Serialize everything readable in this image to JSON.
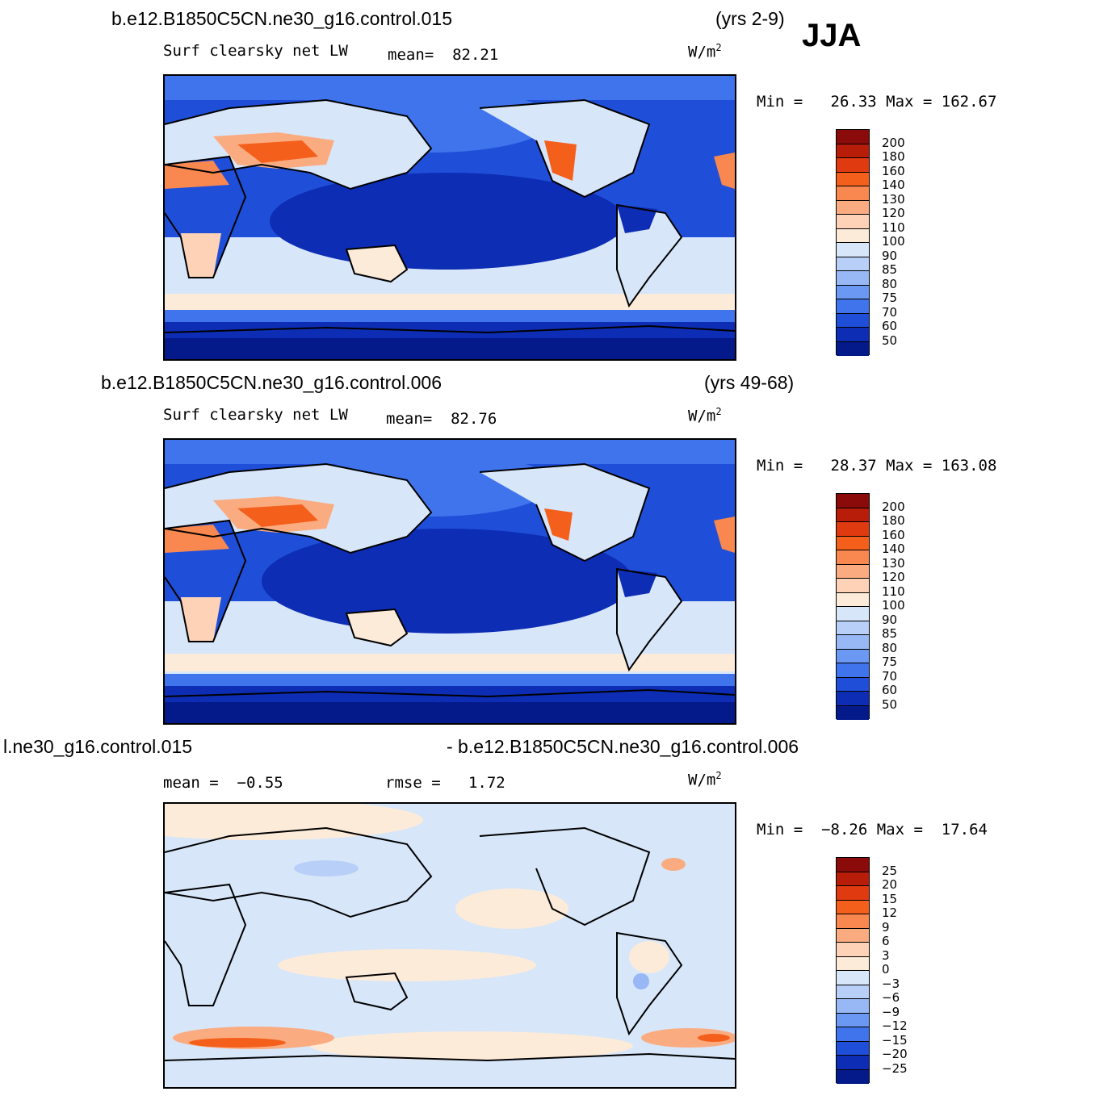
{
  "season": "JJA",
  "panels": [
    {
      "case": "b.e12.B1850C5CN.ne30_g16.control.015",
      "years": "(yrs 2-9)",
      "variable": "Surf clearsky net LW",
      "stat_text": "mean=  82.21",
      "units": "W/m",
      "units_sup": "2",
      "minmax": "Min =   26.33 Max = 162.67",
      "colorbar_labels": [
        "200",
        "180",
        "160",
        "140",
        "130",
        "120",
        "110",
        "100",
        "90",
        "85",
        "80",
        "75",
        "70",
        "60",
        "50"
      ]
    },
    {
      "case": "b.e12.B1850C5CN.ne30_g16.control.006",
      "years": "(yrs 49-68)",
      "variable": "Surf clearsky net LW",
      "stat_text": "mean=  82.76",
      "units": "W/m",
      "units_sup": "2",
      "minmax": "Min =   28.37 Max = 163.08",
      "colorbar_labels": [
        "200",
        "180",
        "160",
        "140",
        "130",
        "120",
        "110",
        "100",
        "90",
        "85",
        "80",
        "75",
        "70",
        "60",
        "50"
      ]
    },
    {
      "case_left": "l.ne30_g16.control.015",
      "case_right": "- b.e12.B1850C5CN.ne30_g16.control.006",
      "mean_text": "mean =  −0.55",
      "rmse_text": "rmse =   1.72",
      "units": "W/m",
      "units_sup": "2",
      "minmax": "Min =  −8.26 Max =  17.64",
      "colorbar_labels": [
        "25",
        "20",
        "15",
        "12",
        "9",
        "6",
        "3",
        "0",
        "−3",
        "−6",
        "−9",
        "−12",
        "−15",
        "−20",
        "−25"
      ]
    }
  ],
  "colors": {
    "abs_scale": [
      "#8b0a0a",
      "#b81d0a",
      "#e03a10",
      "#f4601c",
      "#f98850",
      "#fbab80",
      "#fdd2b6",
      "#fdebd9",
      "#d7e6f9",
      "#b8cff7",
      "#97b7f5",
      "#6a98f2",
      "#3f74ec",
      "#1f4fd8",
      "#0d2db5",
      "#041a8a"
    ],
    "diff_scale": [
      "#8b0a0a",
      "#b81d0a",
      "#e03a10",
      "#f4601c",
      "#f98850",
      "#fbab80",
      "#fdd2b6",
      "#fdebd9",
      "#d7e6f9",
      "#b8cff7",
      "#97b7f5",
      "#6a98f2",
      "#3f74ec",
      "#1f4fd8",
      "#0d2db5",
      "#041a8a"
    ],
    "coastline": "#000000"
  }
}
